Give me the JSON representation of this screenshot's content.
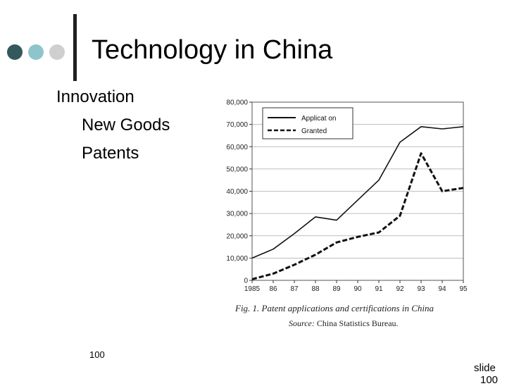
{
  "colors": {
    "dot1": "#34595c",
    "dot2": "#8ec5cb",
    "dot3": "#cfcfcf",
    "bar": "#1f1f1f"
  },
  "slide": {
    "title": "Technology in China",
    "bullets": [
      {
        "text": "Innovation",
        "level": 1
      },
      {
        "text": "New Goods",
        "level": 2
      },
      {
        "text": "Patents",
        "level": 2
      }
    ],
    "page_number": "100",
    "footer_label": "slide",
    "footer_number": "100"
  },
  "chart_data": {
    "type": "line",
    "title": "",
    "caption": "Fig. 1.  Patent applications and certifications in China",
    "source_label": "Source:",
    "source_text": "China Statistics Bureau.",
    "xlabel": "",
    "ylabel": "",
    "x": [
      "1985",
      "86",
      "87",
      "88",
      "89",
      "90",
      "91",
      "92",
      "93",
      "94",
      "95"
    ],
    "ylim": [
      0,
      80000
    ],
    "yticks": [
      "0",
      "10,000",
      "20,000",
      "30,000",
      "40,000",
      "50,000",
      "60,000",
      "70,000",
      "80,000"
    ],
    "ytick_values": [
      0,
      10000,
      20000,
      30000,
      40000,
      50000,
      60000,
      70000,
      80000
    ],
    "legend_position": "top-left",
    "grid": true,
    "series": [
      {
        "name": "Applicat on",
        "style": "solid",
        "values": [
          10000,
          14000,
          21000,
          28500,
          27000,
          36000,
          45000,
          62000,
          69000,
          68000,
          69000
        ]
      },
      {
        "name": "Granted",
        "style": "dashed",
        "values": [
          500,
          3000,
          7000,
          11500,
          17000,
          19500,
          21500,
          29000,
          57000,
          40000,
          41500
        ]
      }
    ]
  }
}
